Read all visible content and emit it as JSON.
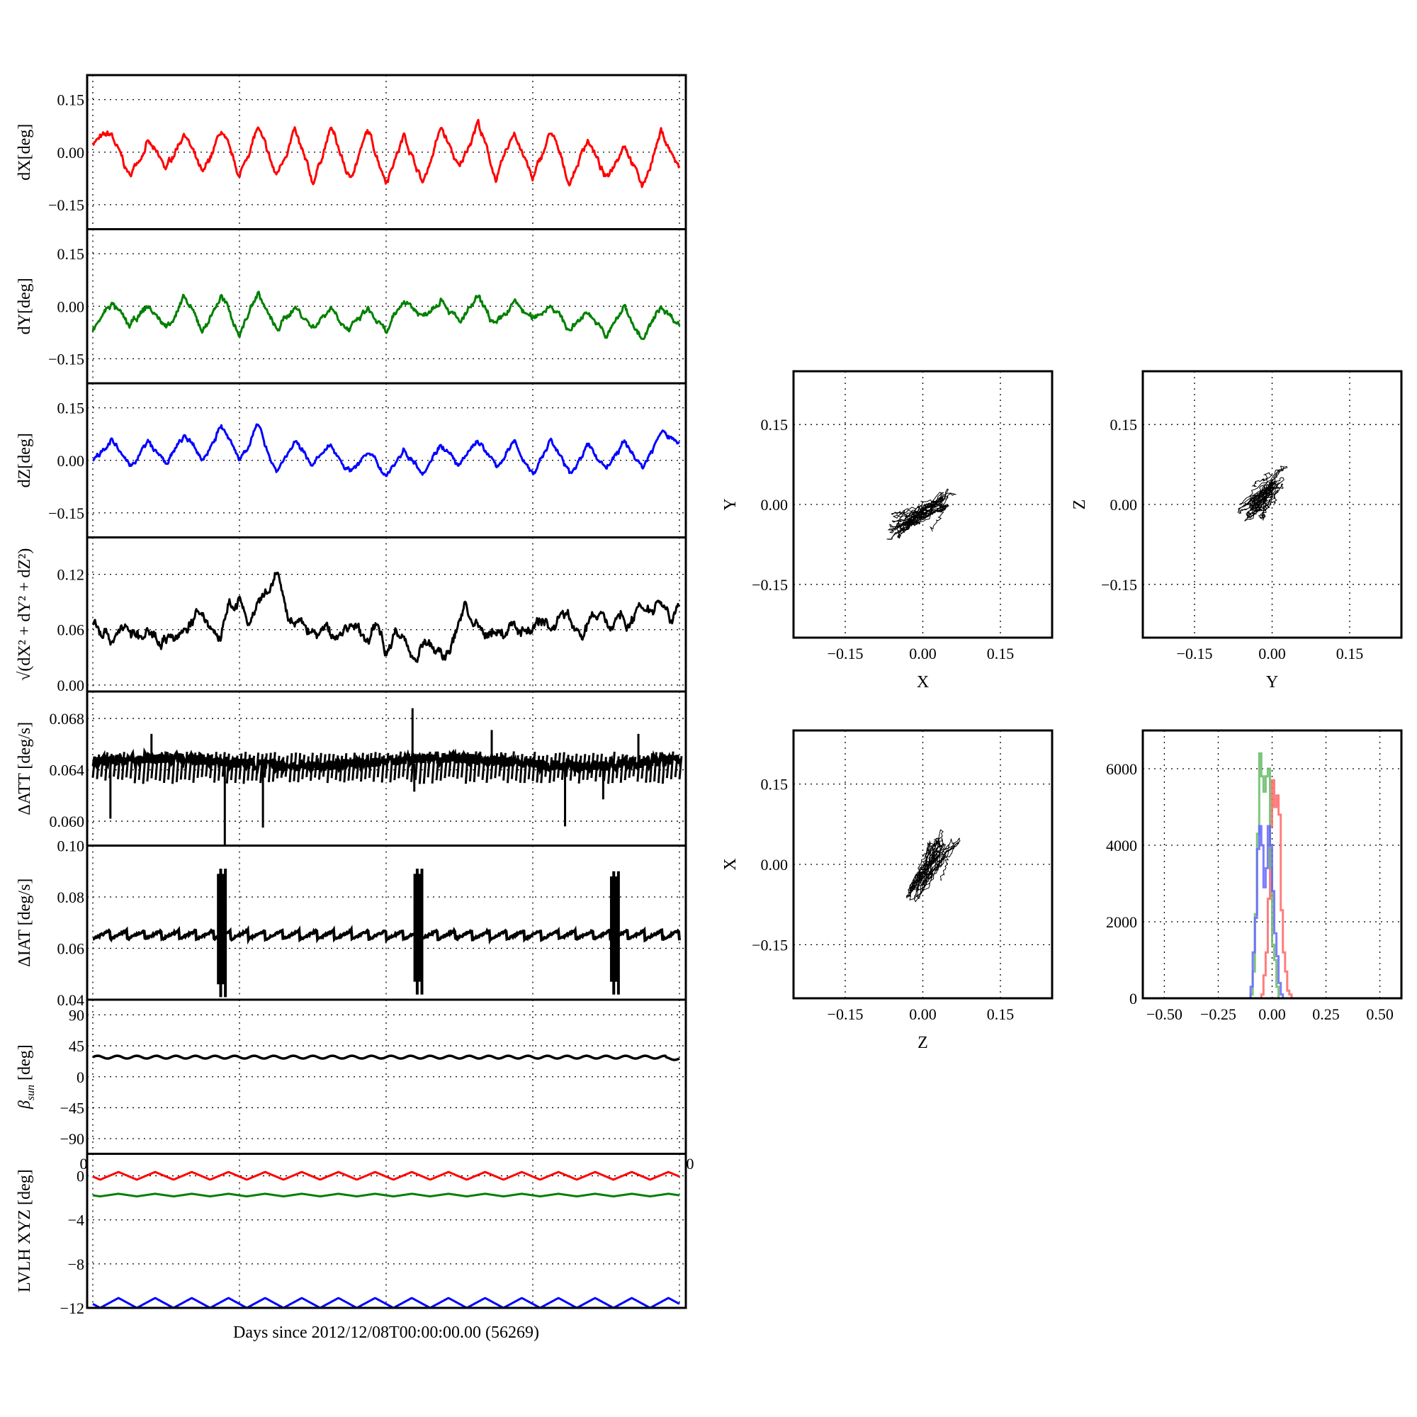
{
  "figure": {
    "xlabel": "Days since 2012/12/08T00:00:00.00 (56269)",
    "corner_labels": [
      "0",
      "0"
    ]
  },
  "chart_data": [
    {
      "id": "dX",
      "type": "line",
      "ylabel": "dX[deg]",
      "color": "#ff0000",
      "ylim": [
        -0.22,
        0.22
      ],
      "yticks": [
        0.15,
        0.0,
        -0.15
      ],
      "ytick_labels": [
        "0.15",
        "0.00",
        "−0.15"
      ],
      "values": [
        0.03,
        0.05,
        -0.07,
        0.03,
        -0.05,
        0.06,
        -0.07,
        0.06,
        -0.07,
        0.07,
        -0.07,
        0.06,
        -0.09,
        0.07,
        -0.08,
        0.06,
        -0.08,
        0.05,
        -0.09,
        0.07,
        -0.05,
        0.09,
        -0.08,
        0.06,
        -0.08,
        0.06,
        -0.09,
        0.04,
        -0.08,
        0.03,
        -0.1,
        0.06,
        -0.05
      ]
    },
    {
      "id": "dY",
      "type": "line",
      "ylabel": "dY[deg]",
      "color": "#008000",
      "ylim": [
        -0.22,
        0.22
      ],
      "yticks": [
        0.15,
        0.0,
        -0.15
      ],
      "ytick_labels": [
        "0.15",
        "0.00",
        "−0.15"
      ],
      "values": [
        -0.07,
        0.01,
        -0.06,
        0.0,
        -0.06,
        0.02,
        -0.07,
        0.03,
        -0.08,
        0.04,
        -0.07,
        0.0,
        -0.06,
        0.0,
        -0.07,
        -0.01,
        -0.08,
        0.02,
        -0.03,
        0.03,
        -0.05,
        0.02,
        -0.06,
        0.01,
        -0.04,
        0.01,
        -0.07,
        -0.01,
        -0.09,
        0.0,
        -0.1,
        0.0,
        -0.05
      ]
    },
    {
      "id": "dZ",
      "type": "line",
      "ylabel": "dZ[deg]",
      "color": "#0000ff",
      "ylim": [
        -0.22,
        0.22
      ],
      "yticks": [
        0.15,
        0.0,
        -0.15
      ],
      "ytick_labels": [
        "0.15",
        "0.00",
        "−0.15"
      ],
      "values": [
        0.0,
        0.06,
        -0.02,
        0.05,
        -0.01,
        0.07,
        0.0,
        0.1,
        0.0,
        0.1,
        -0.03,
        0.05,
        -0.01,
        0.04,
        -0.03,
        0.02,
        -0.04,
        0.03,
        -0.03,
        0.05,
        -0.02,
        0.06,
        -0.02,
        0.05,
        -0.04,
        0.06,
        -0.04,
        0.04,
        -0.02,
        0.05,
        -0.02,
        0.08,
        0.05
      ]
    },
    {
      "id": "rss",
      "type": "line",
      "ylabel": "√(dX² + dY² + dZ²)",
      "color": "#000000",
      "ylim": [
        -0.007,
        0.16
      ],
      "yticks": [
        0.12,
        0.06,
        0.0
      ],
      "ytick_labels": [
        "0.12",
        "0.06",
        "0.00"
      ],
      "values": [
        0.07,
        0.06,
        0.05,
        0.065,
        0.055,
        0.05,
        0.055,
        0.05,
        0.055,
        0.05,
        0.07,
        0.075,
        0.065,
        0.05,
        0.085,
        0.09,
        0.065,
        0.085,
        0.1,
        0.12,
        0.07,
        0.065,
        0.06,
        0.055,
        0.06,
        0.05,
        0.065,
        0.06,
        0.045,
        0.065,
        0.04,
        0.06,
        0.045,
        0.03,
        0.05,
        0.035,
        0.03,
        0.05,
        0.09,
        0.065,
        0.05,
        0.06,
        0.055,
        0.065,
        0.06,
        0.065,
        0.07,
        0.06,
        0.08,
        0.07,
        0.05,
        0.07,
        0.08,
        0.06,
        0.08,
        0.065,
        0.09,
        0.085,
        0.095,
        0.08,
        0.085
      ]
    },
    {
      "id": "datt",
      "type": "line",
      "ylabel": "ΔATT [deg/s]",
      "color": "#000000",
      "ylim": [
        0.0581,
        0.0701
      ],
      "yticks": [
        0.068,
        0.064,
        0.06
      ],
      "ytick_labels": [
        "0.068",
        "0.064",
        "0.060"
      ],
      "band": [
        0.0632,
        0.0652
      ],
      "spikes": [
        {
          "x": 0.03,
          "y": 0.0602
        },
        {
          "x": 0.1,
          "y": 0.0668
        },
        {
          "x": 0.225,
          "y": 0.0581
        },
        {
          "x": 0.29,
          "y": 0.0595
        },
        {
          "x": 0.545,
          "y": 0.0688
        },
        {
          "x": 0.548,
          "y": 0.0623
        },
        {
          "x": 0.68,
          "y": 0.0671
        },
        {
          "x": 0.805,
          "y": 0.0596
        },
        {
          "x": 0.87,
          "y": 0.0617
        },
        {
          "x": 0.93,
          "y": 0.0668
        }
      ]
    },
    {
      "id": "diat",
      "type": "line",
      "ylabel": "ΔIAT [deg/s]",
      "color": "#000000",
      "ylim": [
        0.04,
        0.1
      ],
      "yticks": [
        0.1,
        0.08,
        0.06,
        0.04
      ],
      "ytick_labels": [
        "0.10",
        "0.08",
        "0.06",
        "0.04"
      ],
      "band": [
        0.0635,
        0.067
      ],
      "bursts": [
        {
          "x": 0.22,
          "min": 0.041,
          "max": 0.091
        },
        {
          "x": 0.555,
          "min": 0.042,
          "max": 0.091
        },
        {
          "x": 0.89,
          "min": 0.042,
          "max": 0.09
        }
      ]
    },
    {
      "id": "beta",
      "type": "line",
      "ylabel": "β",
      "ylabel_sub": "sun",
      "ylabel_unit": " [deg]",
      "color": "#000000",
      "ylim": [
        -112,
        112
      ],
      "yticks": [
        90,
        45,
        0,
        -45,
        -90
      ],
      "ytick_labels": [
        "90",
        "45",
        "0",
        "−45",
        "−90"
      ],
      "mean": 28.5,
      "amplitude": 2,
      "cycles": 30
    },
    {
      "id": "lvlh",
      "type": "line",
      "ylabel": "LVLH XYZ [deg]",
      "ylim": [
        -12,
        2
      ],
      "yticks": [
        0,
        -4,
        -8,
        -12
      ],
      "ytick_labels": [
        "0",
        "−4",
        "−8",
        "−12"
      ],
      "series": [
        {
          "name": "X",
          "color": "#ff0000",
          "mean": 0.0,
          "amplitude": 0.35,
          "cycles": 16
        },
        {
          "name": "Y",
          "color": "#008000",
          "mean": -1.75,
          "amplitude": 0.12,
          "cycles": 16
        },
        {
          "name": "Z",
          "color": "#0000ff",
          "mean": -11.55,
          "amplitude": 0.45,
          "cycles": 16
        }
      ]
    },
    {
      "id": "scatter_xy",
      "type": "scatter",
      "xlabel": "X",
      "ylabel": "Y",
      "x_series": "dX",
      "y_series": "dY",
      "xlim": [
        -0.25,
        0.25
      ],
      "ylim": [
        -0.25,
        0.25
      ],
      "ticks": [
        -0.15,
        0.0,
        0.15
      ],
      "tick_labels": [
        "−0.15",
        "0.00",
        "0.15"
      ]
    },
    {
      "id": "scatter_yz",
      "type": "scatter",
      "xlabel": "Y",
      "ylabel": "Z",
      "x_series": "dY",
      "y_series": "dZ",
      "xlim": [
        -0.25,
        0.25
      ],
      "ylim": [
        -0.25,
        0.25
      ],
      "ticks": [
        -0.15,
        0.0,
        0.15
      ],
      "tick_labels": [
        "−0.15",
        "0.00",
        "0.15"
      ]
    },
    {
      "id": "scatter_zx",
      "type": "scatter",
      "xlabel": "Z",
      "ylabel": "X",
      "x_series": "dZ",
      "y_series": "dX",
      "xlim": [
        -0.25,
        0.25
      ],
      "ylim": [
        -0.25,
        0.25
      ],
      "ticks": [
        -0.15,
        0.0,
        0.15
      ],
      "tick_labels": [
        "−0.15",
        "0.00",
        "0.15"
      ]
    },
    {
      "id": "hist",
      "type": "bar",
      "xlim": [
        -0.6,
        0.6
      ],
      "ylim": [
        0,
        7000
      ],
      "xticks": [
        -0.5,
        -0.25,
        0.0,
        0.25,
        0.5
      ],
      "xtick_labels": [
        "−0.50",
        "−0.25",
        "0.00",
        "0.25",
        "0.50"
      ],
      "yticks": [
        0,
        2000,
        4000,
        6000
      ],
      "ytick_labels": [
        "0",
        "2000",
        "4000",
        "6000"
      ],
      "bin_start": -0.1,
      "bin_width": 0.01,
      "series": [
        {
          "name": "dX",
          "color": "#ff6666",
          "counts": [
            0,
            0,
            0,
            0,
            0,
            100,
            600,
            1200,
            2600,
            4500,
            5700,
            5000,
            5300,
            4800,
            2300,
            1200,
            700,
            200,
            100,
            0,
            0,
            0
          ]
        },
        {
          "name": "dY",
          "color": "#66bb66",
          "counts": [
            100,
            700,
            2200,
            4300,
            6400,
            5800,
            5400,
            5800,
            6000,
            3400,
            1400,
            1000,
            300,
            0,
            0,
            0,
            0,
            0,
            0,
            0,
            0,
            0
          ]
        },
        {
          "name": "dZ",
          "color": "#6666ff",
          "counts": [
            300,
            1200,
            2100,
            3900,
            4500,
            4000,
            2900,
            3400,
            4500,
            4000,
            2800,
            1700,
            1100,
            400,
            100,
            0,
            0,
            0,
            0,
            0,
            0,
            0
          ]
        }
      ]
    }
  ]
}
